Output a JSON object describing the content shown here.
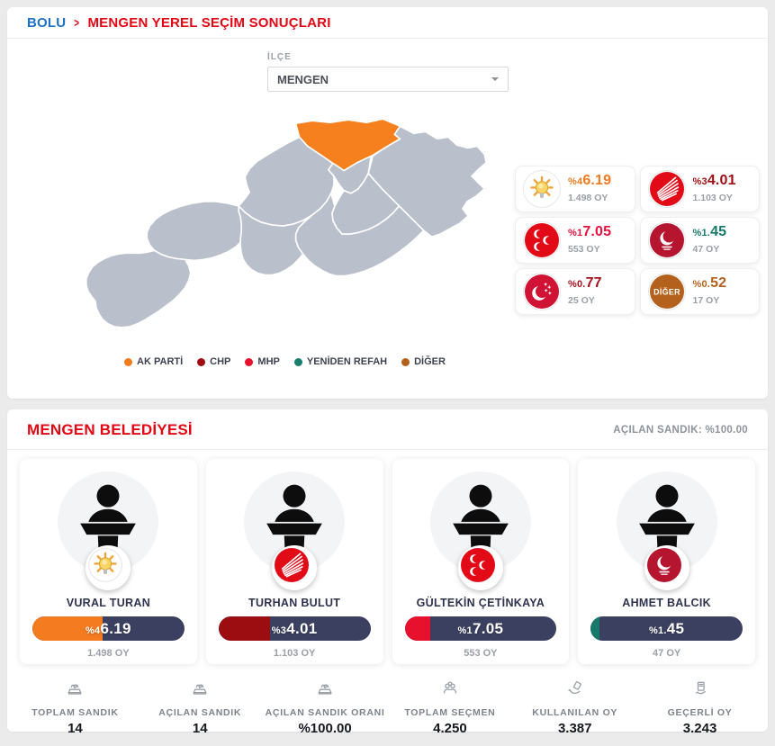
{
  "breadcrumb": {
    "province": "BOLU",
    "separator": ">",
    "title": "MENGEN YEREL SEÇİM SONUÇLARI"
  },
  "filter": {
    "label": "İLÇE",
    "selected": "MENGEN"
  },
  "map": {
    "highlighted_district": "MENGEN",
    "highlight_color": "#f7801e",
    "region_color": "#b9c0cc",
    "border_color": "#ffffff"
  },
  "results": [
    {
      "icon": "akparti-party-icon",
      "percent": "%46.19",
      "votes": "1.498 OY",
      "color": "#f47b20"
    },
    {
      "icon": "chp-party-icon",
      "percent": "%34.01",
      "votes": "1.103 OY",
      "color": "#a00e13"
    },
    {
      "icon": "mhp-party-icon",
      "percent": "%17.05",
      "votes": "553 OY",
      "color": "#e8123d"
    },
    {
      "icon": "yeniden-refah-party-icon",
      "percent": "%1.45",
      "votes": "47 OY",
      "color": "#17796a"
    },
    {
      "icon": "saadet-party-icon",
      "percent": "%0.77",
      "votes": "25 OY",
      "color": "#a8121f"
    },
    {
      "icon": "diger-party-icon",
      "icon_label": "DİĞER",
      "percent": "%0.52",
      "votes": "17 OY",
      "color": "#b4611d"
    }
  ],
  "legend": [
    {
      "label": "AK PARTİ",
      "color": "#f47b20"
    },
    {
      "label": "CHP",
      "color": "#a00e13"
    },
    {
      "label": "MHP",
      "color": "#e8112d"
    },
    {
      "label": "YENİDEN REFAH",
      "color": "#1a7e6d"
    },
    {
      "label": "DİĞER",
      "color": "#b4611d"
    }
  ],
  "municipality": {
    "title": "MENGEN BELEDİYESİ",
    "opened_ballots": "AÇILAN SANDIK: %100.00"
  },
  "candidates": [
    {
      "name": "VURAL TURAN",
      "party": "AK PARTİ",
      "percent": "%46.19",
      "percent_value": 46.19,
      "votes": "1.498 OY",
      "color": "#f47b20"
    },
    {
      "name": "TURHAN BULUT",
      "party": "CHP",
      "percent": "%34.01",
      "percent_value": 34.01,
      "votes": "1.103 OY",
      "color": "#9c0d12"
    },
    {
      "name": "GÜLTEKİN ÇETİNKAYA",
      "party": "MHP",
      "percent": "%17.05",
      "percent_value": 17.05,
      "votes": "553 OY",
      "color": "#e8112d"
    },
    {
      "name": "AHMET BALCIK",
      "party": "YENİDEN REFAH",
      "percent": "%1.45",
      "percent_value": 1.45,
      "votes": "47 OY",
      "color": "#17796a"
    }
  ],
  "stats": [
    {
      "icon": "ballot-box-icon",
      "label": "TOPLAM SANDIK",
      "value": "14"
    },
    {
      "icon": "ballot-box-opened-icon",
      "label": "AÇILAN SANDIK",
      "value": "14"
    },
    {
      "icon": "ballot-box-ratio-icon",
      "label": "AÇILAN SANDIK ORANI",
      "value": "%100.00"
    },
    {
      "icon": "voters-icon",
      "label": "TOPLAM SEÇMEN",
      "value": "4.250"
    },
    {
      "icon": "vote-cast-icon",
      "label": "KULLANILAN OY",
      "value": "3.387"
    },
    {
      "icon": "valid-vote-icon",
      "label": "GEÇERLİ OY",
      "value": "3.243"
    }
  ]
}
